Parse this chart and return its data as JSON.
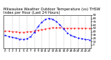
{
  "title": "Milwaukee Weather Outdoor Temperature (vs) THSW Index per Hour (Last 24 Hours)",
  "hours": [
    0,
    1,
    2,
    3,
    4,
    5,
    6,
    7,
    8,
    9,
    10,
    11,
    12,
    13,
    14,
    15,
    16,
    17,
    18,
    19,
    20,
    21,
    22,
    23
  ],
  "temp": [
    42,
    41,
    40,
    39,
    38,
    38,
    39,
    40,
    42,
    44,
    46,
    48,
    50,
    51,
    51,
    51,
    50,
    50,
    50,
    50,
    50,
    50,
    50,
    49
  ],
  "thsw": [
    28,
    25,
    22,
    20,
    17,
    16,
    18,
    25,
    38,
    55,
    68,
    76,
    80,
    77,
    70,
    60,
    48,
    36,
    28,
    24,
    20,
    18,
    16,
    15
  ],
  "temp_color": "#ff0000",
  "thsw_color": "#0000ff",
  "bg_color": "#ffffff",
  "grid_color": "#888888",
  "ylim_min": -10,
  "ylim_max": 90,
  "yticks": [
    0,
    10,
    20,
    30,
    40,
    50,
    60,
    70,
    80,
    90
  ],
  "xticks": [
    0,
    1,
    2,
    3,
    4,
    5,
    6,
    7,
    8,
    9,
    10,
    11,
    12,
    13,
    14,
    15,
    16,
    17,
    18,
    19,
    20,
    21,
    22,
    23
  ],
  "title_fontsize": 3.8,
  "tick_fontsize": 3.0,
  "marker_size": 1.2,
  "line_width": 0.6
}
